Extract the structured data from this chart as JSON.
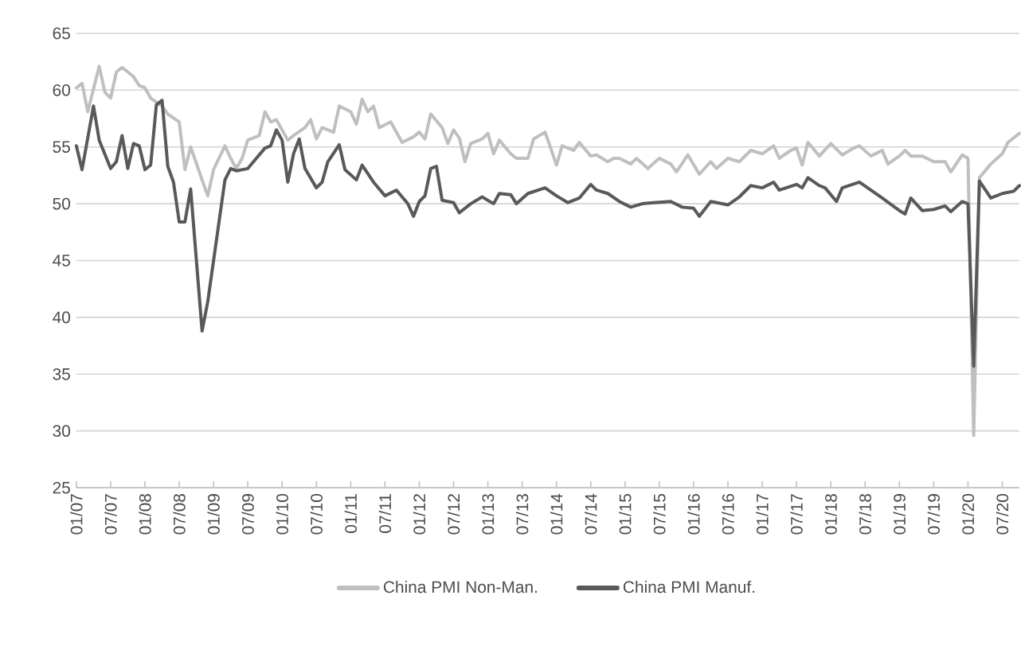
{
  "chart_data": {
    "type": "line",
    "grid": "y",
    "legend": "bottom",
    "xlim": [
      "2007-01",
      "2020-10"
    ],
    "ylim": [
      25,
      65
    ],
    "yticks": [
      25,
      30,
      35,
      40,
      45,
      50,
      55,
      60,
      65
    ],
    "xticks": [
      {
        "value": "2007-01",
        "label": "01/07"
      },
      {
        "value": "2007-07",
        "label": "07/07"
      },
      {
        "value": "2008-01",
        "label": "01/08"
      },
      {
        "value": "2008-07",
        "label": "07/08"
      },
      {
        "value": "2009-01",
        "label": "01/09"
      },
      {
        "value": "2009-07",
        "label": "07/09"
      },
      {
        "value": "2010-01",
        "label": "01/10"
      },
      {
        "value": "2010-07",
        "label": "07/10"
      },
      {
        "value": "2011-01",
        "label": "01/11"
      },
      {
        "value": "2011-07",
        "label": "07/11"
      },
      {
        "value": "2012-01",
        "label": "01/12"
      },
      {
        "value": "2012-07",
        "label": "07/12"
      },
      {
        "value": "2013-01",
        "label": "01/13"
      },
      {
        "value": "2013-07",
        "label": "07/13"
      },
      {
        "value": "2014-01",
        "label": "01/14"
      },
      {
        "value": "2014-07",
        "label": "07/14"
      },
      {
        "value": "2015-01",
        "label": "01/15"
      },
      {
        "value": "2015-07",
        "label": "07/15"
      },
      {
        "value": "2016-01",
        "label": "01/16"
      },
      {
        "value": "2016-07",
        "label": "07/16"
      },
      {
        "value": "2017-01",
        "label": "01/17"
      },
      {
        "value": "2017-07",
        "label": "07/17"
      },
      {
        "value": "2018-01",
        "label": "01/18"
      },
      {
        "value": "2018-07",
        "label": "07/18"
      },
      {
        "value": "2019-01",
        "label": "01/19"
      },
      {
        "value": "2019-07",
        "label": "07/19"
      },
      {
        "value": "2020-01",
        "label": "01/20"
      },
      {
        "value": "2020-07",
        "label": "07/20"
      }
    ],
    "series": [
      {
        "name": "China PMI Non-Man.",
        "color": "#bfbfbf",
        "x": [
          "2007-01",
          "2007-02",
          "2007-03",
          "2007-05",
          "2007-06",
          "2007-07",
          "2007-08",
          "2007-09",
          "2007-11",
          "2007-12",
          "2008-01",
          "2008-02",
          "2008-04",
          "2008-05",
          "2008-07",
          "2008-08",
          "2008-09",
          "2008-11",
          "2008-12",
          "2009-01",
          "2009-03",
          "2009-04",
          "2009-05",
          "2009-06",
          "2009-07",
          "2009-09",
          "2009-10",
          "2009-11",
          "2009-12",
          "2010-02",
          "2010-03",
          "2010-05",
          "2010-06",
          "2010-07",
          "2010-08",
          "2010-10",
          "2010-11",
          "2011-01",
          "2011-02",
          "2011-03",
          "2011-04",
          "2011-05",
          "2011-06",
          "2011-08",
          "2011-10",
          "2011-12",
          "2012-01",
          "2012-02",
          "2012-03",
          "2012-05",
          "2012-06",
          "2012-07",
          "2012-08",
          "2012-09",
          "2012-10",
          "2012-12",
          "2013-01",
          "2013-02",
          "2013-03",
          "2013-05",
          "2013-06",
          "2013-08",
          "2013-09",
          "2013-11",
          "2013-12",
          "2014-01",
          "2014-02",
          "2014-04",
          "2014-05",
          "2014-07",
          "2014-08",
          "2014-10",
          "2014-11",
          "2014-12",
          "2015-02",
          "2015-03",
          "2015-05",
          "2015-07",
          "2015-09",
          "2015-10",
          "2015-12",
          "2016-02",
          "2016-04",
          "2016-05",
          "2016-07",
          "2016-09",
          "2016-11",
          "2017-01",
          "2017-03",
          "2017-04",
          "2017-06",
          "2017-07",
          "2017-08",
          "2017-09",
          "2017-11",
          "2018-01",
          "2018-03",
          "2018-05",
          "2018-06",
          "2018-08",
          "2018-10",
          "2018-11",
          "2019-01",
          "2019-02",
          "2019-03",
          "2019-05",
          "2019-07",
          "2019-09",
          "2019-10",
          "2019-12",
          "2020-01",
          "2020-02",
          "2020-03",
          "2020-05",
          "2020-07",
          "2020-08",
          "2020-10"
        ],
        "values": [
          60.2,
          60.6,
          58.1,
          62.1,
          59.8,
          59.3,
          61.6,
          62.0,
          61.2,
          60.4,
          60.2,
          59.3,
          58.6,
          57.9,
          57.2,
          53.0,
          55.0,
          52.1,
          50.7,
          53.0,
          55.1,
          54.0,
          53.1,
          54.0,
          55.6,
          56.0,
          58.1,
          57.2,
          57.4,
          55.6,
          56.0,
          56.7,
          57.4,
          55.7,
          56.7,
          56.3,
          58.6,
          58.1,
          57.0,
          59.2,
          58.1,
          58.6,
          56.7,
          57.2,
          55.4,
          55.9,
          56.3,
          55.7,
          57.9,
          56.7,
          55.3,
          56.5,
          55.8,
          53.7,
          55.3,
          55.7,
          56.2,
          54.4,
          55.6,
          54.4,
          54.0,
          54.0,
          55.7,
          56.3,
          54.9,
          53.4,
          55.1,
          54.7,
          55.4,
          54.2,
          54.3,
          53.7,
          54.0,
          54.0,
          53.5,
          54.0,
          53.1,
          54.0,
          53.5,
          52.8,
          54.3,
          52.6,
          53.7,
          53.1,
          54.0,
          53.7,
          54.7,
          54.4,
          55.1,
          54.0,
          54.7,
          54.9,
          53.4,
          55.4,
          54.2,
          55.3,
          54.3,
          54.9,
          55.1,
          54.2,
          54.7,
          53.5,
          54.2,
          54.7,
          54.2,
          54.2,
          53.7,
          53.7,
          52.8,
          54.3,
          54.0,
          29.6,
          52.3,
          53.5,
          54.4,
          55.4,
          56.2
        ]
      },
      {
        "name": "China PMI Manuf.",
        "color": "#595959",
        "x": [
          "2007-01",
          "2007-02",
          "2007-04",
          "2007-05",
          "2007-07",
          "2007-08",
          "2007-09",
          "2007-10",
          "2007-11",
          "2007-12",
          "2008-01",
          "2008-02",
          "2008-03",
          "2008-04",
          "2008-05",
          "2008-06",
          "2008-07",
          "2008-08",
          "2008-09",
          "2008-11",
          "2008-12",
          "2009-03",
          "2009-04",
          "2009-05",
          "2009-07",
          "2009-08",
          "2009-10",
          "2009-11",
          "2009-12",
          "2010-01",
          "2010-02",
          "2010-03",
          "2010-04",
          "2010-05",
          "2010-07",
          "2010-08",
          "2010-09",
          "2010-11",
          "2010-12",
          "2011-02",
          "2011-03",
          "2011-05",
          "2011-07",
          "2011-09",
          "2011-11",
          "2011-12",
          "2012-01",
          "2012-02",
          "2012-03",
          "2012-04",
          "2012-05",
          "2012-07",
          "2012-08",
          "2012-10",
          "2012-12",
          "2013-02",
          "2013-03",
          "2013-05",
          "2013-06",
          "2013-08",
          "2013-11",
          "2014-01",
          "2014-03",
          "2014-05",
          "2014-07",
          "2014-08",
          "2014-10",
          "2014-12",
          "2015-02",
          "2015-04",
          "2015-06",
          "2015-09",
          "2015-11",
          "2016-01",
          "2016-02",
          "2016-04",
          "2016-07",
          "2016-09",
          "2016-11",
          "2017-01",
          "2017-03",
          "2017-04",
          "2017-07",
          "2017-08",
          "2017-09",
          "2017-11",
          "2017-12",
          "2018-02",
          "2018-03",
          "2018-06",
          "2018-08",
          "2018-10",
          "2019-01",
          "2019-02",
          "2019-03",
          "2019-05",
          "2019-07",
          "2019-09",
          "2019-10",
          "2019-12",
          "2020-01",
          "2020-02",
          "2020-03",
          "2020-05",
          "2020-07",
          "2020-09",
          "2020-10"
        ],
        "values": [
          55.1,
          53.0,
          58.6,
          55.6,
          53.1,
          53.7,
          56.0,
          53.1,
          55.3,
          55.1,
          53.0,
          53.4,
          58.7,
          59.1,
          53.3,
          51.9,
          48.4,
          48.4,
          51.3,
          38.8,
          41.4,
          52.1,
          53.1,
          52.9,
          53.1,
          53.7,
          54.9,
          55.1,
          56.5,
          55.6,
          51.9,
          54.4,
          55.7,
          53.1,
          51.4,
          51.9,
          53.7,
          55.2,
          53.0,
          52.1,
          53.4,
          51.9,
          50.7,
          51.2,
          50.0,
          48.9,
          50.2,
          50.7,
          53.1,
          53.3,
          50.3,
          50.1,
          49.2,
          50.0,
          50.6,
          50.0,
          50.9,
          50.8,
          50.0,
          50.9,
          51.4,
          50.7,
          50.1,
          50.5,
          51.7,
          51.2,
          50.9,
          50.2,
          49.7,
          50.0,
          50.1,
          50.2,
          49.7,
          49.6,
          48.9,
          50.2,
          49.9,
          50.6,
          51.6,
          51.4,
          51.9,
          51.2,
          51.7,
          51.4,
          52.3,
          51.6,
          51.4,
          50.2,
          51.4,
          51.9,
          51.2,
          50.5,
          49.4,
          49.1,
          50.5,
          49.4,
          49.5,
          49.8,
          49.3,
          50.2,
          50.0,
          35.7,
          52.0,
          50.5,
          50.9,
          51.1,
          51.6
        ]
      }
    ]
  }
}
